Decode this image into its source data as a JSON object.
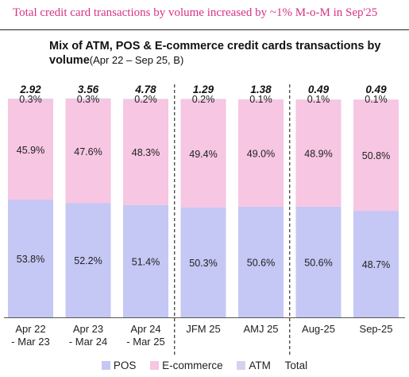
{
  "headline": "Total credit card transactions by volume increased  by ~1% M-o-M in Sep'25",
  "chart_data": {
    "type": "bar",
    "stacked": "percent",
    "title": "Mix of ATM, POS & E-commerce credit cards transactions by volume",
    "subtitle": "(Apr 22 – Sep 25, B)",
    "categories": [
      [
        "Apr 22",
        "- Mar 23"
      ],
      [
        "Apr 23",
        "- Mar 24"
      ],
      [
        "Apr 24",
        "- Mar 25"
      ],
      [
        "JFM 25"
      ],
      [
        "AMJ 25"
      ],
      [
        "Aug-25"
      ],
      [
        "Sep-25"
      ]
    ],
    "series": [
      {
        "name": "POS",
        "color": "#c5c7f4",
        "values": [
          53.8,
          52.2,
          51.4,
          50.3,
          50.6,
          50.6,
          48.7
        ],
        "labels": [
          "53.8%",
          "52.2%",
          "51.4%",
          "50.3%",
          "50.6%",
          "50.6%",
          "48.7%"
        ]
      },
      {
        "name": "E-commerce",
        "color": "#f6c6e2",
        "values": [
          45.9,
          47.6,
          48.3,
          49.4,
          49.0,
          48.9,
          50.8
        ],
        "labels": [
          "45.9%",
          "47.6%",
          "48.3%",
          "49.4%",
          "49.0%",
          "48.9%",
          "50.8%"
        ]
      },
      {
        "name": "ATM",
        "color": "#d8d0f0",
        "values": [
          0.3,
          0.3,
          0.2,
          0.2,
          0.1,
          0.1,
          0.1
        ],
        "labels": [
          "0.3%",
          "0.3%",
          "0.2%",
          "0.2%",
          "0.1%",
          "0.1%",
          "0.1%"
        ]
      }
    ],
    "totals": [
      "2.92",
      "3.56",
      "4.78",
      "1.29",
      "1.38",
      "0.49",
      "0.49"
    ],
    "total_legend": "Total",
    "ylim": [
      0,
      100
    ],
    "grid": false,
    "legend_position": "bottom",
    "separators_after": [
      2,
      4
    ]
  }
}
